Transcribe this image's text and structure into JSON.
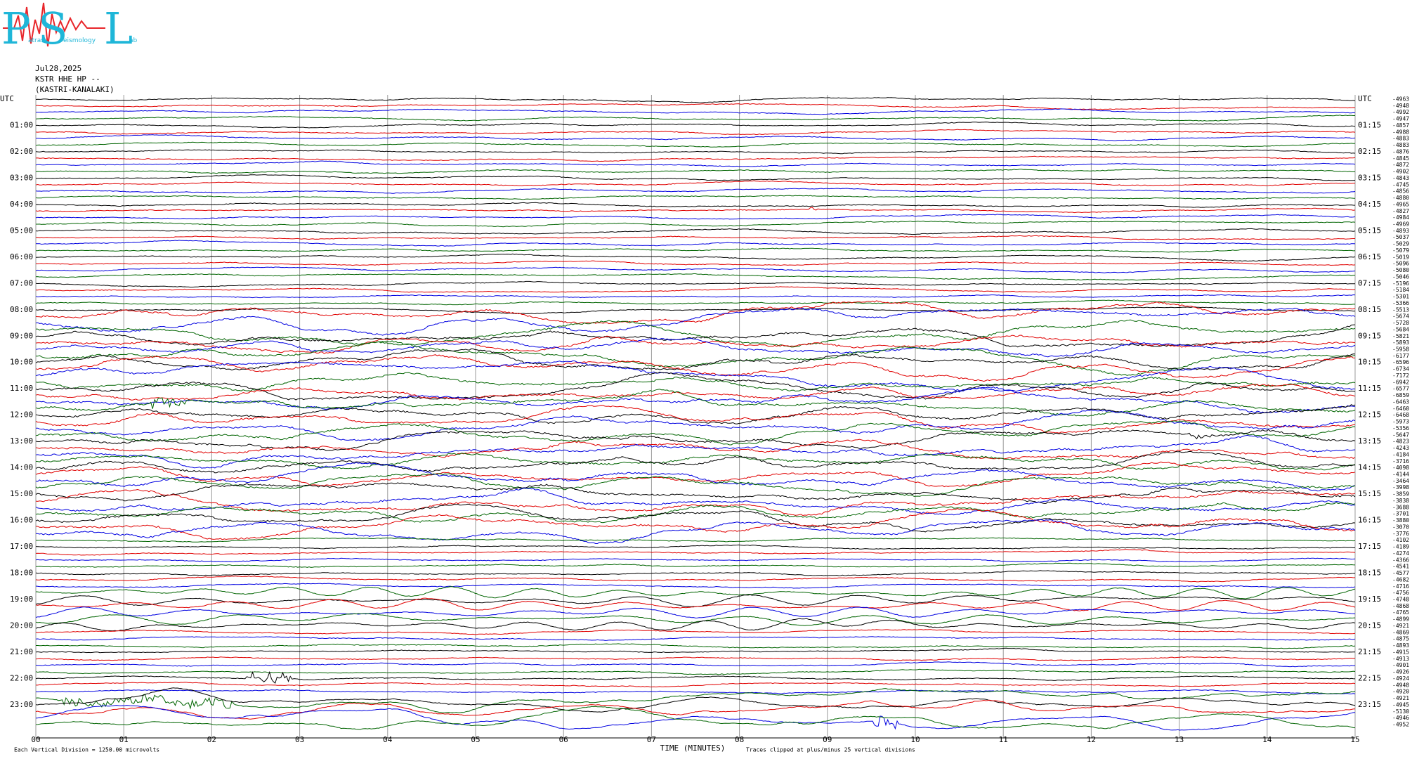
{
  "logo": {
    "letters": [
      "P",
      "S",
      "L"
    ],
    "words": [
      "atras",
      "eismology",
      "ab"
    ]
  },
  "header": {
    "date": "Jul28,2025",
    "station": "KSTR HHE HP --",
    "location": "(KASTRI-KANALAKI)"
  },
  "left_labels": [
    "UTC",
    "01:00",
    "02:00",
    "03:00",
    "04:00",
    "05:00",
    "06:00",
    "07:00",
    "08:00",
    "09:00",
    "10:00",
    "11:00",
    "12:00",
    "13:00",
    "14:00",
    "15:00",
    "16:00",
    "17:00",
    "18:00",
    "19:00",
    "20:00",
    "21:00",
    "22:00",
    "23:00"
  ],
  "right_labels": [
    "UTC",
    "01:15",
    "02:15",
    "03:15",
    "04:15",
    "05:15",
    "06:15",
    "07:15",
    "08:15",
    "09:15",
    "10:15",
    "11:15",
    "12:15",
    "13:15",
    "14:15",
    "15:15",
    "16:15",
    "17:15",
    "18:15",
    "19:15",
    "20:15",
    "21:15",
    "22:15",
    "23:15"
  ],
  "trace_offsets": [
    -4963,
    -4948,
    -4992,
    -4947,
    -4857,
    -4988,
    -4883,
    -4883,
    -4876,
    -4845,
    -4872,
    -4902,
    -4843,
    -4745,
    -4856,
    -4880,
    -4965,
    -4827,
    -4984,
    -4969,
    -4893,
    -5037,
    -5029,
    -5079,
    -5019,
    -5096,
    -5080,
    -5046,
    -5196,
    -5184,
    -5301,
    -5366,
    -5513,
    -5674,
    -5728,
    -5684,
    -5821,
    -5893,
    -5958,
    -6177,
    -6596,
    -6734,
    -7172,
    -6942,
    -6577,
    -6859,
    -6463,
    -6460,
    -6468,
    -5973,
    -5356,
    -5647,
    -4823,
    -4243,
    -4184,
    -3716,
    -4098,
    -4144,
    -3464,
    -3998,
    -3859,
    -3838,
    -3688,
    -3701,
    -3880,
    -3070,
    -3776,
    -4102,
    -4189,
    -4274,
    -4366,
    -4541,
    -4577,
    -4682,
    -4716,
    -4756,
    -4748,
    -4868,
    -4765,
    -4899,
    -4921,
    -4869,
    -4875,
    -4893,
    -4915,
    -4913,
    -4901,
    -4926,
    -4924,
    -4948,
    -4920,
    -4921,
    -4945,
    -5130,
    -4946,
    -4952
  ],
  "x_axis": {
    "ticks": [
      "00",
      "01",
      "02",
      "03",
      "04",
      "05",
      "06",
      "07",
      "08",
      "09",
      "10",
      "11",
      "12",
      "13",
      "14",
      "15"
    ],
    "label": "TIME (MINUTES)"
  },
  "footer": {
    "scale": "Each Vertical Division = 1250.00 microvolts",
    "clip": "Traces clipped at plus/minus 25 vertical divisions"
  }
}
